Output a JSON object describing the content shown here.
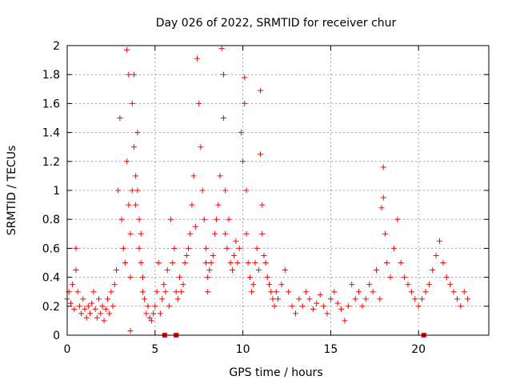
{
  "chart_data": {
    "type": "scatter",
    "title": "Day 026 of 2022, SRMTID for receiver chur",
    "xlabel": "GPS time / hours",
    "ylabel": "SRMTID / TECUs",
    "xlim": [
      0,
      24
    ],
    "ylim": [
      0,
      2
    ],
    "xticks": [
      0,
      5,
      10,
      15,
      20
    ],
    "yticks": [
      0,
      0.2,
      0.4,
      0.6,
      0.8,
      1,
      1.2,
      1.4,
      1.6,
      1.8,
      2
    ],
    "xtick_labels": [
      "0",
      "5",
      "10",
      "15",
      "20"
    ],
    "ytick_labels": [
      "0",
      "0.2",
      "0.4",
      "0.6",
      "0.8",
      "1",
      "1.2",
      "1.4",
      "1.6",
      "1.8",
      "2"
    ],
    "grid": true,
    "marker": "plus",
    "color": "#ff0000",
    "series": [
      {
        "name": "SRMTID",
        "x": [
          0.0,
          0.1,
          0.2,
          0.3,
          0.4,
          0.5,
          0.5,
          0.6,
          0.7,
          0.8,
          0.9,
          1.0,
          1.1,
          1.2,
          1.3,
          1.4,
          1.5,
          1.6,
          1.7,
          1.8,
          1.9,
          2.0,
          2.1,
          2.2,
          2.3,
          2.4,
          2.5,
          2.6,
          2.7,
          2.8,
          2.9,
          3.0,
          3.1,
          3.2,
          3.3,
          3.4,
          3.4,
          3.5,
          3.5,
          3.6,
          3.6,
          3.6,
          3.7,
          3.7,
          3.8,
          3.8,
          3.9,
          3.9,
          4.0,
          4.0,
          4.1,
          4.1,
          4.2,
          4.2,
          4.3,
          4.3,
          4.4,
          4.5,
          4.6,
          4.7,
          4.8,
          4.9,
          5.0,
          5.1,
          5.2,
          5.3,
          5.4,
          5.5,
          5.6,
          5.7,
          5.8,
          5.9,
          6.0,
          6.1,
          6.2,
          6.3,
          6.4,
          6.5,
          6.6,
          6.7,
          6.8,
          6.9,
          7.0,
          7.1,
          7.2,
          7.3,
          7.4,
          7.5,
          7.6,
          7.7,
          7.8,
          7.9,
          7.9,
          8.0,
          8.0,
          8.1,
          8.2,
          8.3,
          8.4,
          8.5,
          8.6,
          8.7,
          8.8,
          8.9,
          8.9,
          9.0,
          9.0,
          9.1,
          9.2,
          9.3,
          9.4,
          9.5,
          9.6,
          9.7,
          9.8,
          9.9,
          10.0,
          10.1,
          10.1,
          10.2,
          10.2,
          10.3,
          10.4,
          10.5,
          10.6,
          10.7,
          10.8,
          10.9,
          11.0,
          11.0,
          11.1,
          11.1,
          11.2,
          11.3,
          11.4,
          11.5,
          11.6,
          11.7,
          11.8,
          11.9,
          12.0,
          12.2,
          12.4,
          12.6,
          12.8,
          13.0,
          13.2,
          13.4,
          13.6,
          13.8,
          14.0,
          14.2,
          14.4,
          14.6,
          14.8,
          15.0,
          15.2,
          15.4,
          15.6,
          15.8,
          16.0,
          16.2,
          16.4,
          16.6,
          16.8,
          17.0,
          17.2,
          17.4,
          17.6,
          17.8,
          17.9,
          18.0,
          18.0,
          18.1,
          18.2,
          18.4,
          18.6,
          18.8,
          19.0,
          19.2,
          19.4,
          19.6,
          19.8,
          20.0,
          20.2,
          20.4,
          20.6,
          20.8,
          21.0,
          21.2,
          21.4,
          21.6,
          21.8,
          22.0,
          22.2,
          22.4,
          22.6,
          22.8
        ],
        "y": [
          0.25,
          0.3,
          0.22,
          0.35,
          0.18,
          0.6,
          0.45,
          0.3,
          0.2,
          0.15,
          0.25,
          0.18,
          0.12,
          0.2,
          0.15,
          0.22,
          0.3,
          0.18,
          0.12,
          0.25,
          0.15,
          0.2,
          0.1,
          0.18,
          0.25,
          0.15,
          0.3,
          0.2,
          0.35,
          0.45,
          1.0,
          1.5,
          0.8,
          0.6,
          0.5,
          1.97,
          1.2,
          1.8,
          0.9,
          0.7,
          0.03,
          0.4,
          1.0,
          1.6,
          1.8,
          1.3,
          1.1,
          0.9,
          1.4,
          1.0,
          0.8,
          0.6,
          0.7,
          0.5,
          0.4,
          0.3,
          0.25,
          0.15,
          0.2,
          0.12,
          0.1,
          0.15,
          0.2,
          0.3,
          0.5,
          0.15,
          0.25,
          0.35,
          0.3,
          0.45,
          0.2,
          0.8,
          0.5,
          0.6,
          0.3,
          0.25,
          0.4,
          0.3,
          0.35,
          0.5,
          0.55,
          0.6,
          0.7,
          0.9,
          1.1,
          0.75,
          1.91,
          1.6,
          1.3,
          1.0,
          0.8,
          0.6,
          0.5,
          0.4,
          0.3,
          0.45,
          0.5,
          0.55,
          0.7,
          0.8,
          0.9,
          1.1,
          1.98,
          1.8,
          1.5,
          1.0,
          0.7,
          0.6,
          0.8,
          0.5,
          0.45,
          0.55,
          0.65,
          0.5,
          0.6,
          1.4,
          1.2,
          1.6,
          1.78,
          1.0,
          0.7,
          0.5,
          0.4,
          0.3,
          0.35,
          0.5,
          0.6,
          0.45,
          1.69,
          1.25,
          0.9,
          0.7,
          0.55,
          0.5,
          0.4,
          0.35,
          0.3,
          0.25,
          0.2,
          0.3,
          0.25,
          0.35,
          0.45,
          0.3,
          0.2,
          0.15,
          0.25,
          0.2,
          0.3,
          0.25,
          0.18,
          0.22,
          0.28,
          0.2,
          0.15,
          0.25,
          0.3,
          0.22,
          0.18,
          0.1,
          0.2,
          0.35,
          0.25,
          0.3,
          0.2,
          0.25,
          0.35,
          0.3,
          0.45,
          0.25,
          0.88,
          1.16,
          0.95,
          0.7,
          0.5,
          0.4,
          0.6,
          0.8,
          0.5,
          0.4,
          0.35,
          0.3,
          0.25,
          0.2,
          0.25,
          0.3,
          0.35,
          0.45,
          0.55,
          0.65,
          0.5,
          0.4,
          0.35,
          0.3,
          0.25,
          0.2,
          0.3,
          0.25
        ]
      }
    ],
    "zero_markers_x": [
      5.55,
      6.2,
      20.3
    ]
  }
}
